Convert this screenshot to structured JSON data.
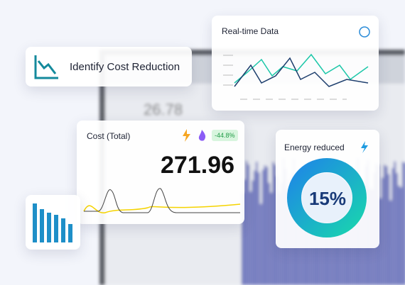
{
  "background": {
    "metric": "26.78"
  },
  "cards": {
    "cost_reduction": {
      "title": "Identify Cost Reduction"
    },
    "realtime": {
      "title": "Real-time Data"
    },
    "cost": {
      "title": "Cost (Total)",
      "badge": "-44.8%",
      "value": "271.96"
    },
    "energy": {
      "title": "Energy reduced",
      "value": "15%"
    }
  }
}
